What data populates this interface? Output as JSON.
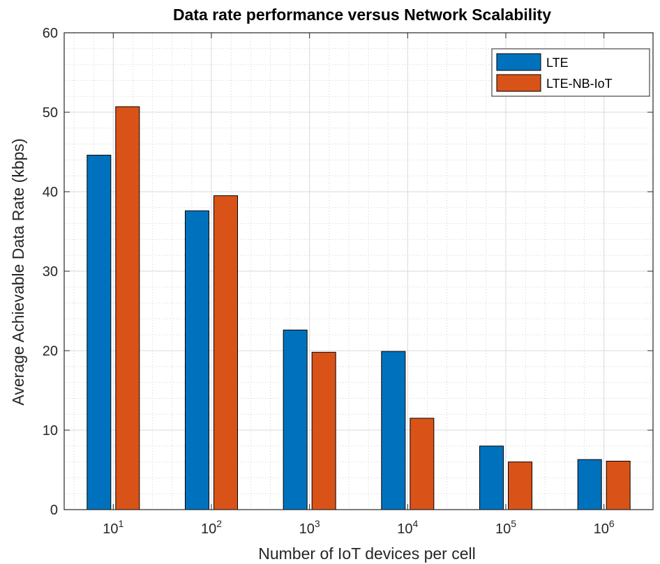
{
  "chart_data": {
    "type": "bar",
    "title": "Data rate performance versus Network Scalability",
    "xlabel": "Number of IoT devices per cell",
    "ylabel": "Average Achievable Data Rate (kbps)",
    "categories": [
      {
        "base": "10",
        "exp": "1"
      },
      {
        "base": "10",
        "exp": "2"
      },
      {
        "base": "10",
        "exp": "3"
      },
      {
        "base": "10",
        "exp": "4"
      },
      {
        "base": "10",
        "exp": "5"
      },
      {
        "base": "10",
        "exp": "6"
      }
    ],
    "series": [
      {
        "name": "LTE",
        "color": "#0072BD",
        "values": [
          44.6,
          37.6,
          22.6,
          19.9,
          8.0,
          6.3
        ]
      },
      {
        "name": "LTE-NB-IoT",
        "color": "#D95319",
        "values": [
          50.7,
          39.5,
          19.8,
          11.5,
          6.0,
          6.1
        ]
      }
    ],
    "ylim": [
      0,
      60
    ],
    "yticks": [
      0,
      10,
      20,
      30,
      40,
      50,
      60
    ],
    "grid": true,
    "minor_grid": true,
    "legend_position": "top-right"
  }
}
